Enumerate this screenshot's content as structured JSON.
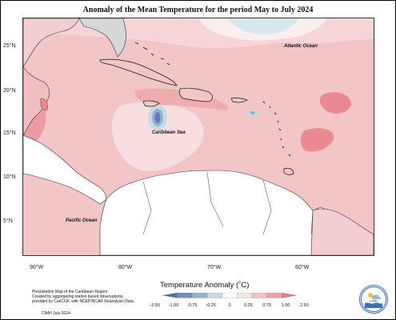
{
  "title": "Anomaly of the Mean Temperature for the period May to July 2024",
  "oceans": {
    "atlantic": "Atlantic Ocean",
    "caribbean": "Caribbean Sea",
    "pacific": "Pacific Ocean"
  },
  "lat_labels": [
    "25°N",
    "20°N",
    "15°N",
    "10°N",
    "5°N"
  ],
  "lon_labels": [
    "90°W",
    "80°W",
    "70°W",
    "60°W"
  ],
  "legend": {
    "title": "Temperature Anomaly (˚C)",
    "ticks": [
      "-2.50",
      "-1.50",
      "-0.75",
      "-0.25",
      "0",
      "0.25",
      "0.75",
      "1.50",
      "2.50"
    ],
    "colors": [
      "#4a6fa5",
      "#6f8fbc",
      "#95b0cf",
      "#c3dbe2",
      "#ffffff",
      "#fbe2e3",
      "#f5c0c3",
      "#ef9ea2",
      "#ea7880"
    ]
  },
  "footnote": {
    "line1": "Precipitation Map of the Caribbean Region.",
    "line2": "Created by aggregating station based observations,",
    "line3": "provided by CariCOF, with NCEP/NCAR Reanalysis Data.",
    "credit": "CIMH July-2024"
  },
  "logo_text": "CIMH"
}
